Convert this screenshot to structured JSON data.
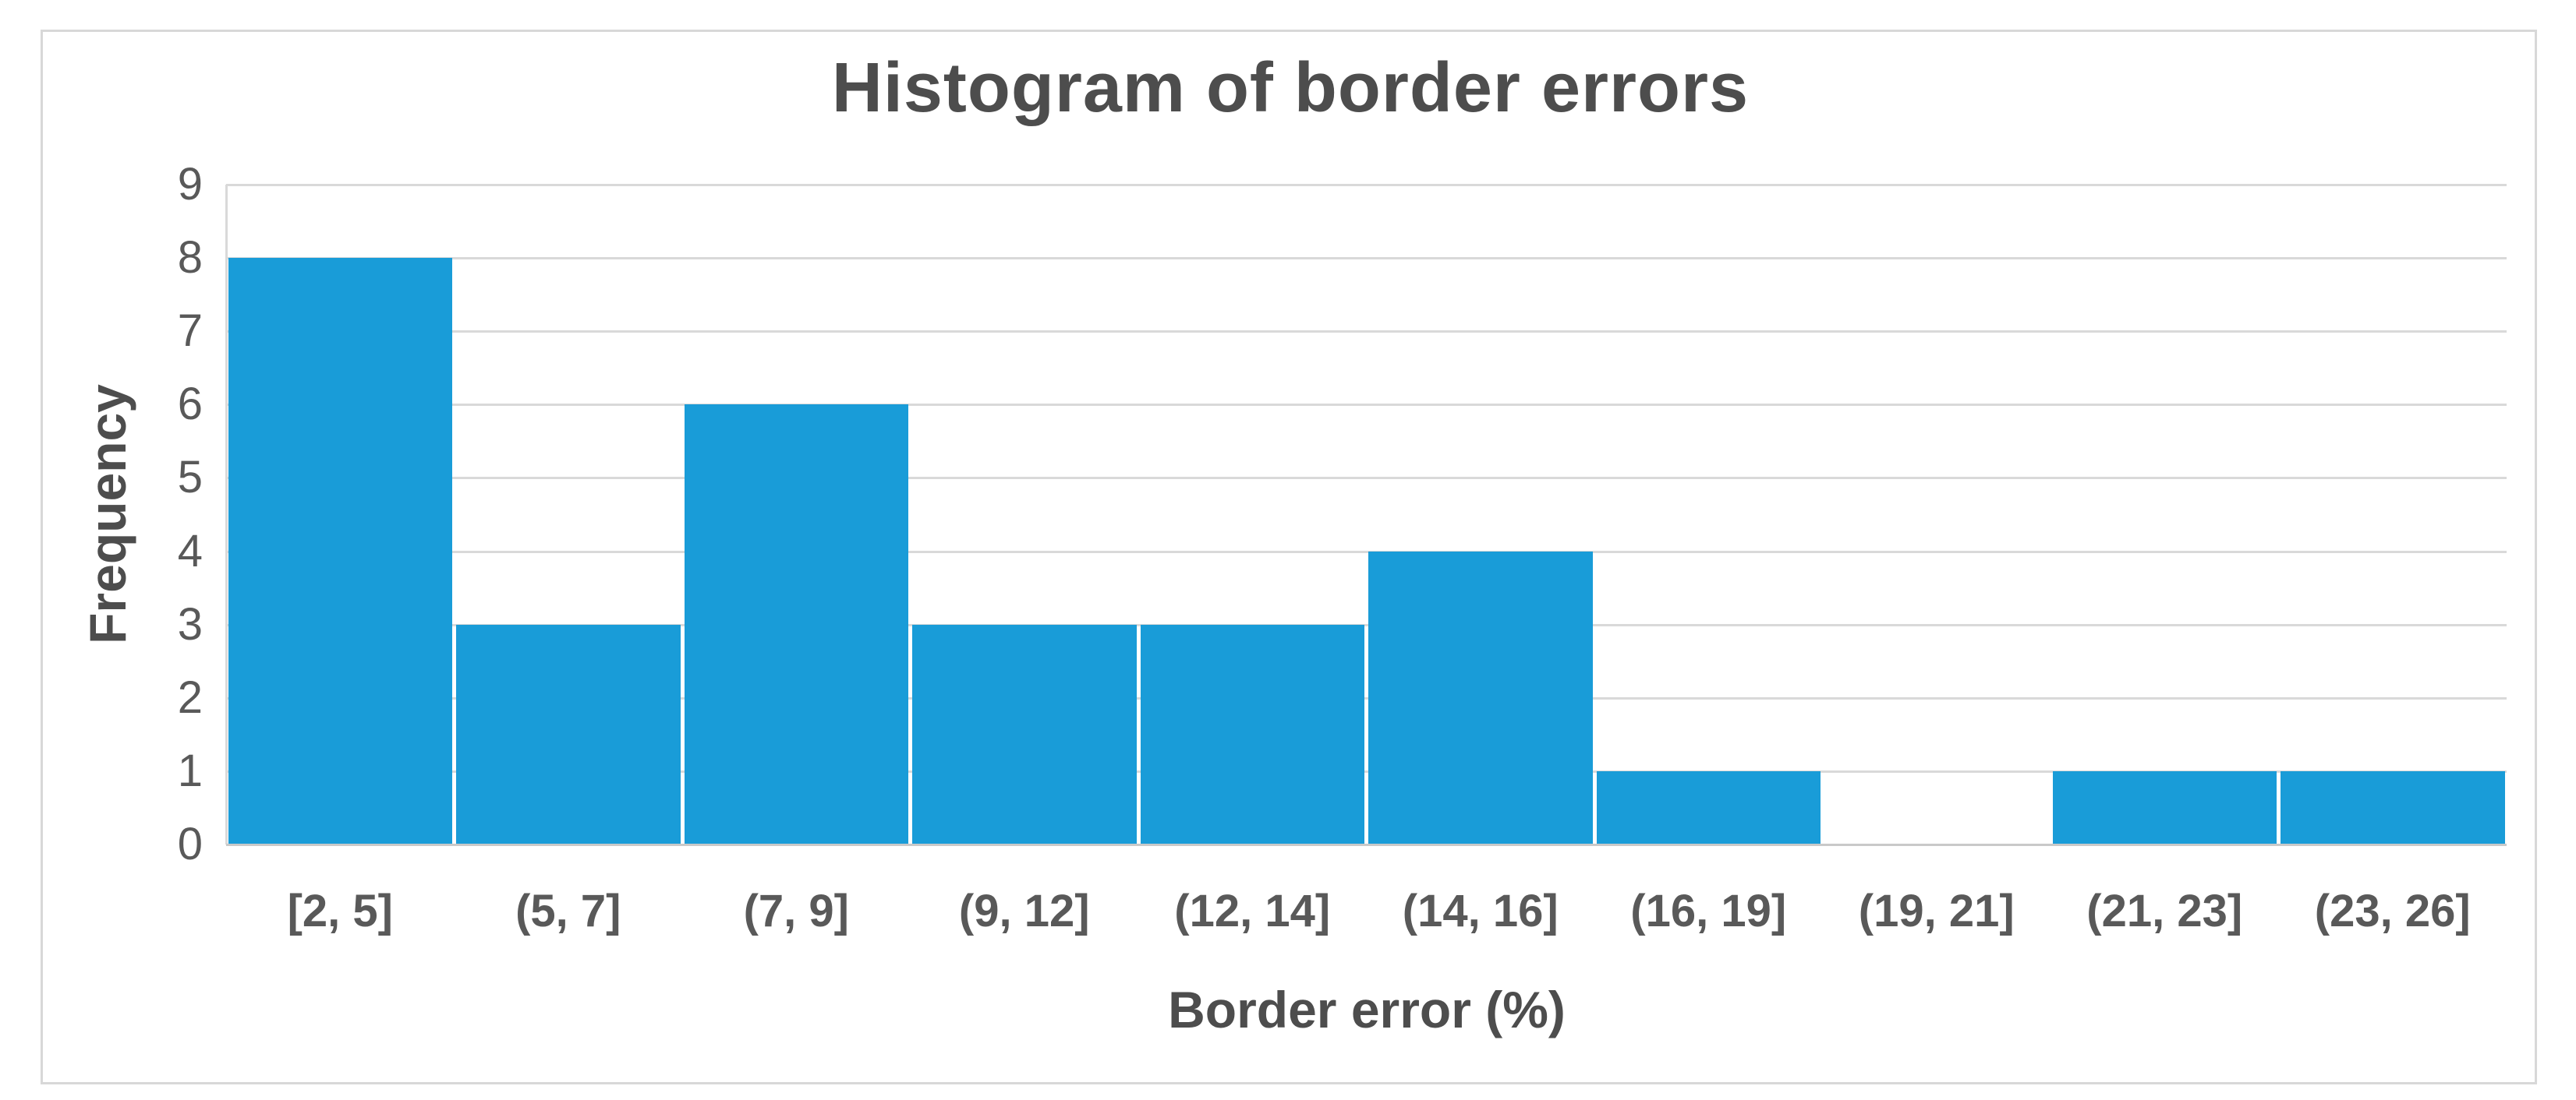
{
  "chart_data": {
    "type": "bar",
    "subtype": "histogram",
    "title": "Histogram of border errors",
    "xlabel": "Border error (%)",
    "ylabel": "Frequency",
    "categories": [
      "[2, 5]",
      "(5, 7]",
      "(7, 9]",
      "(9, 12]",
      "(12, 14]",
      "(14, 16]",
      "(16, 19]",
      "(19, 21]",
      "(21, 23]",
      "(23, 26]"
    ],
    "values": [
      8,
      3,
      6,
      3,
      3,
      4,
      1,
      0,
      1,
      1
    ],
    "ylim": [
      0,
      9
    ],
    "yticks": [
      0,
      1,
      2,
      3,
      4,
      5,
      6,
      7,
      8,
      9
    ],
    "grid": "horizontal",
    "legend": "none",
    "colors": {
      "bar": "#199CD8",
      "gridline": "#D9D9D9",
      "axis_line": "#C9C9C9",
      "tick_text": "#595959",
      "title_text": "#4D4D4D",
      "frame_border": "#D8D8D8",
      "background": "#FFFFFF"
    }
  }
}
